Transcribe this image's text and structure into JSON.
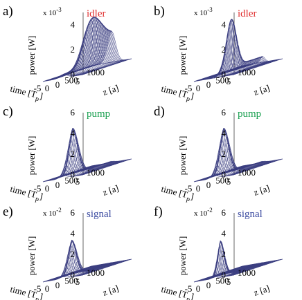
{
  "colors": {
    "mesh": "#3a3d80",
    "idler": "#e03030",
    "pump": "#1aa050",
    "signal": "#3a4aa0"
  },
  "chart_data": [
    {
      "type": "surface3d",
      "label": "a)",
      "title": "idler",
      "title_color": "#e03030",
      "scale": "x 10",
      "scale_exp": "-3",
      "zlabel": "power [W]",
      "tlabel": "time [T",
      "tlabel_sub": "p",
      "tlabel_end": "]",
      "xlabel": "z [a]",
      "zticks": [
        "4",
        "2",
        "0"
      ],
      "tticks": [
        "5",
        "0",
        "-5"
      ],
      "xticks": [
        "0",
        "500",
        "1000"
      ],
      "zrange": [
        0,
        0.005
      ],
      "trange": [
        -5,
        5
      ],
      "xrange": [
        0,
        1000
      ],
      "profile": {
        "kind": "grow_saturate",
        "peak": 0.0042,
        "center": 600,
        "width": 200,
        "pulse_width": 1.4
      }
    },
    {
      "type": "surface3d",
      "label": "b)",
      "title": "idler",
      "title_color": "#e03030",
      "scale": "x 10",
      "scale_exp": "-3",
      "zlabel": "power [W]",
      "tlabel": "time [T",
      "tlabel_sub": "p",
      "tlabel_end": "]",
      "xlabel": "z [a]",
      "zticks": [
        "4",
        "2",
        "0"
      ],
      "tticks": [
        "5",
        "0",
        "-5"
      ],
      "xticks": [
        "0",
        "500",
        "1000"
      ],
      "zrange": [
        0,
        0.005
      ],
      "trange": [
        -5,
        5
      ],
      "xrange": [
        0,
        1000
      ],
      "profile": {
        "kind": "peak",
        "peak": 0.0038,
        "center": 360,
        "width": 140,
        "pulse_width": 0.8
      }
    },
    {
      "type": "surface3d",
      "label": "c)",
      "title": "pump",
      "title_color": "#1aa050",
      "scale": "",
      "scale_exp": "",
      "zlabel": "power [W]",
      "tlabel": "time [T",
      "tlabel_sub": "p",
      "tlabel_end": "]",
      "xlabel": "z [a]",
      "zticks": [
        "6",
        "4",
        "2",
        "0"
      ],
      "tticks": [
        "5",
        "0",
        "-5"
      ],
      "xticks": [
        "0",
        "500",
        "1000"
      ],
      "zrange": [
        0,
        6
      ],
      "trange": [
        -5,
        5
      ],
      "xrange": [
        0,
        1000
      ],
      "profile": {
        "kind": "decay",
        "peak": 4.5,
        "floor": 0.1,
        "center": 200,
        "width": 140,
        "pulse_width": 1.2
      }
    },
    {
      "type": "surface3d",
      "label": "d)",
      "title": "pump",
      "title_color": "#1aa050",
      "scale": "",
      "scale_exp": "",
      "zlabel": "power [W]",
      "tlabel": "time [T",
      "tlabel_sub": "p",
      "tlabel_end": "]",
      "xlabel": "z [a]",
      "zticks": [
        "6",
        "4",
        "2",
        "0"
      ],
      "tticks": [
        "5",
        "0",
        "-5"
      ],
      "xticks": [
        "0",
        "500",
        "1000"
      ],
      "zrange": [
        0,
        6
      ],
      "trange": [
        -5,
        5
      ],
      "xrange": [
        0,
        1000
      ],
      "profile": {
        "kind": "decay",
        "peak": 4.5,
        "floor": 0.1,
        "center": 200,
        "width": 140,
        "pulse_width": 1.2
      }
    },
    {
      "type": "surface3d",
      "label": "e)",
      "title": "signal",
      "title_color": "#3a4aa0",
      "scale": "x 10",
      "scale_exp": "-2",
      "zlabel": "power [W]",
      "tlabel": "time [T",
      "tlabel_sub": "p",
      "tlabel_end": "]",
      "xlabel": "z [a]",
      "zticks": [
        "6",
        "4",
        "2",
        "0"
      ],
      "tticks": [
        "5",
        "0",
        "-5"
      ],
      "xticks": [
        "0",
        "500",
        "1000"
      ],
      "zrange": [
        0,
        0.06
      ],
      "trange": [
        -5,
        5
      ],
      "xrange": [
        0,
        1000
      ],
      "profile": {
        "kind": "decay",
        "peak": 0.034,
        "floor": 0.0,
        "center": 180,
        "width": 130,
        "pulse_width": 1.1
      }
    },
    {
      "type": "surface3d",
      "label": "f)",
      "title": "signal",
      "title_color": "#3a4aa0",
      "scale": "x 10",
      "scale_exp": "-2",
      "zlabel": "power [W]",
      "tlabel": "time [T",
      "tlabel_sub": "p",
      "tlabel_end": "]",
      "xlabel": "z [a]",
      "zticks": [
        "6",
        "4",
        "2",
        "0"
      ],
      "tticks": [
        "5",
        "0",
        "-5"
      ],
      "xticks": [
        "0",
        "500",
        "1000"
      ],
      "zrange": [
        0,
        0.06
      ],
      "trange": [
        -5,
        5
      ],
      "xrange": [
        0,
        1000
      ],
      "profile": {
        "kind": "decay",
        "peak": 0.034,
        "floor": 0.0,
        "center": 130,
        "width": 110,
        "pulse_width": 0.7
      }
    }
  ]
}
